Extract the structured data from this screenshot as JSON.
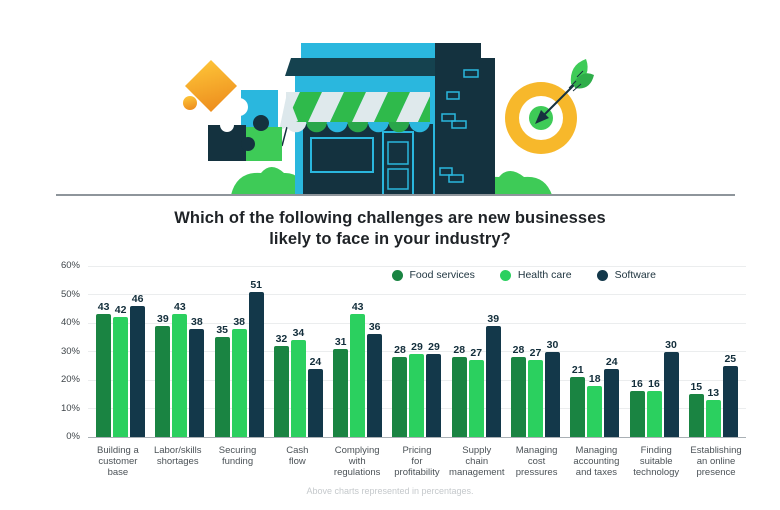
{
  "header": {
    "title_line1": "Which of the following challenges are new businesses",
    "title_line2": "likely to face in your industry?"
  },
  "footer": {
    "caption": "Above charts represented in percentages."
  },
  "colors": {
    "food_services": "#1a8442",
    "health_care": "#2bd05f",
    "software": "#13384a",
    "gridline": "#ebedee",
    "axis_line": "#a9b0b5",
    "value_label_ink": "#132e3b",
    "divider": "#8e959b",
    "illustration_cyan": "#2ab7de",
    "illustration_navy": "#14323f",
    "illustration_green": "#3ecb57",
    "illustration_awning_green": "#2fba4b",
    "illustration_yellow": "#f7b82b",
    "illustration_orange": "#ee9120"
  },
  "illustration": {
    "icons": [
      "puzzle-pieces-icon",
      "storefront-icon",
      "awning-icon",
      "brick-building-icon",
      "target-arrow-icon",
      "bush-icon"
    ]
  },
  "chart_data": {
    "type": "bar",
    "title": "Which of the following challenges are new businesses likely to face in your industry?",
    "categories": [
      "Building a customer base",
      "Labor/skills shortages",
      "Securing funding",
      "Cash flow",
      "Complying with regulations",
      "Pricing for profitability",
      "Supply chain management",
      "Managing cost pressures",
      "Managing accounting and taxes",
      "Finding suitable technology",
      "Establishing an online presence"
    ],
    "categories_wrapped": [
      "Building a\ncustomer\nbase",
      "Labor/skills\nshortages",
      "Securing\nfunding",
      "Cash\nflow",
      "Complying\nwith\nregulations",
      "Pricing\nfor\nprofitability",
      "Supply\nchain\nmanagement",
      "Managing\ncost\npressures",
      "Managing\naccounting\nand taxes",
      "Finding\nsuitable\ntechnology",
      "Establishing\nan online\npresence"
    ],
    "series": [
      {
        "name": "Food services",
        "color": "#1a8442",
        "values": [
          43,
          39,
          35,
          32,
          31,
          28,
          28,
          28,
          21,
          16,
          15
        ]
      },
      {
        "name": "Health care",
        "color": "#2bd05f",
        "values": [
          42,
          43,
          38,
          34,
          43,
          29,
          27,
          27,
          18,
          16,
          13
        ]
      },
      {
        "name": "Software",
        "color": "#13384a",
        "values": [
          46,
          38,
          51,
          24,
          36,
          29,
          39,
          30,
          24,
          30,
          25
        ]
      }
    ],
    "unit": "%",
    "ylim": [
      0,
      60
    ],
    "y_ticks": [
      "0%",
      "10%",
      "20%",
      "30%",
      "40%",
      "50%",
      "60%"
    ],
    "grid": true,
    "legend_position": "top-right-inside-plot",
    "value_labels": true
  }
}
